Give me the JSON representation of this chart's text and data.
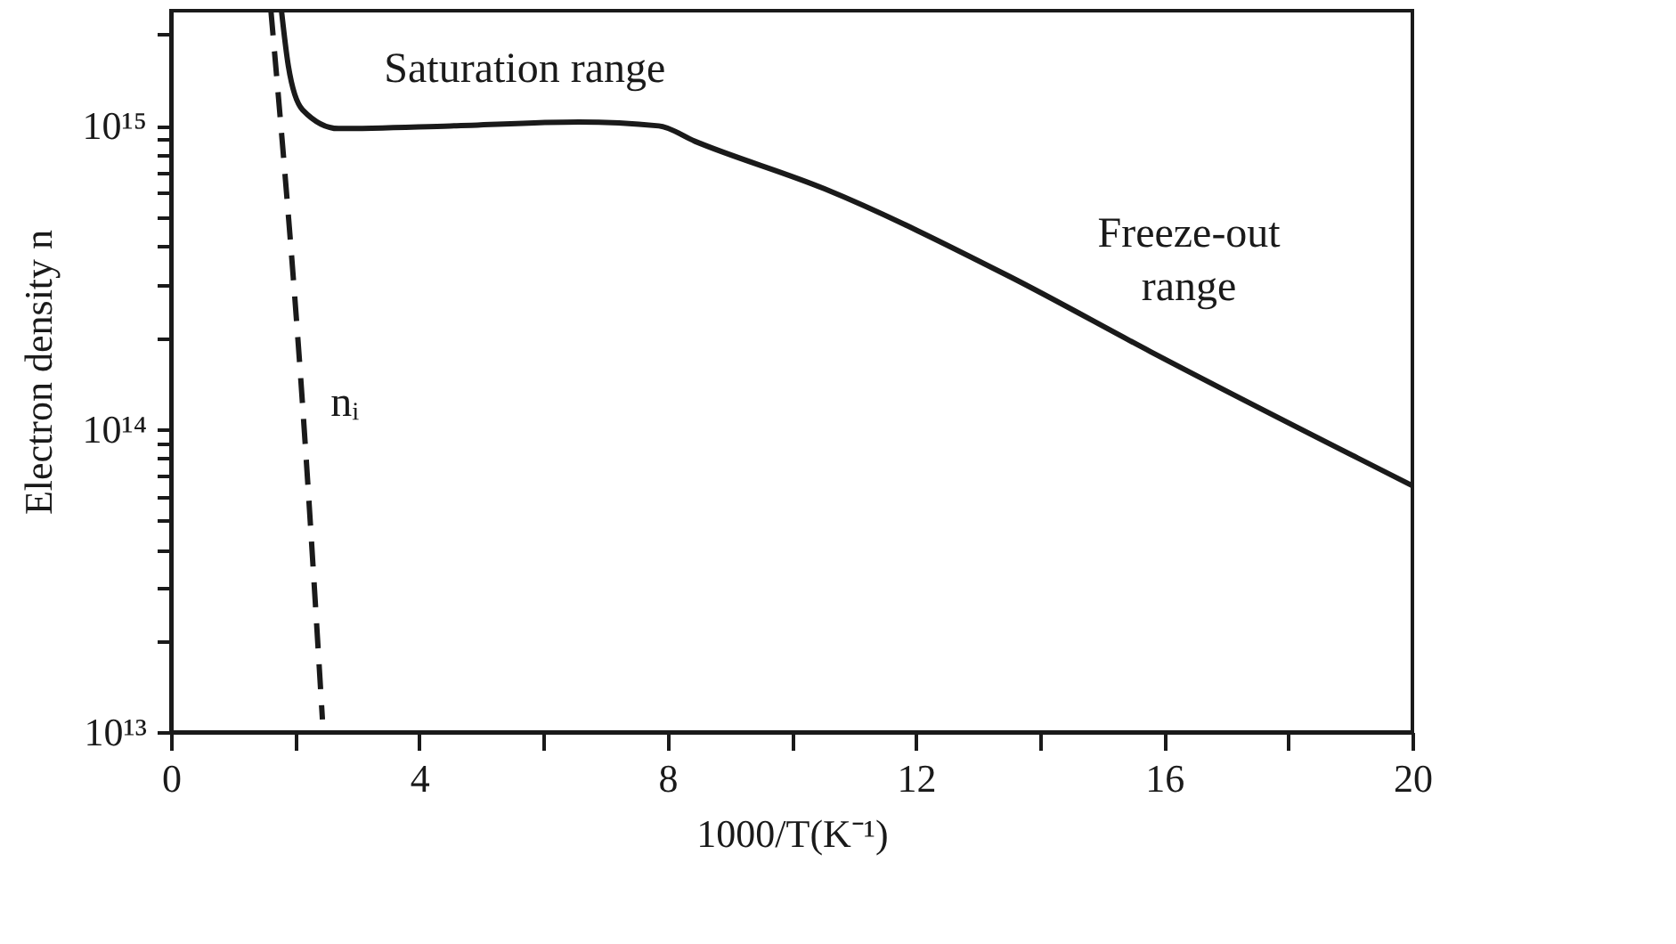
{
  "chart_data": {
    "type": "line",
    "xlabel": "1000/T(K⁻¹)",
    "ylabel": "Electron density n",
    "xlim": [
      0,
      20
    ],
    "xticks": [
      0,
      {
        "value": 2,
        "label": null
      },
      4,
      {
        "value": 6,
        "label": null
      },
      8,
      {
        "value": 10,
        "label": null
      },
      12,
      {
        "value": 14,
        "label": null
      },
      16,
      {
        "value": 18,
        "label": null
      },
      20
    ],
    "ylim": [
      10000000000000.0,
      2400000000000000.0
    ],
    "log": "y",
    "yticks": [
      {
        "value": 10000000000000.0,
        "label": "10¹³"
      },
      {
        "value": 20000000000000.0,
        "label": null
      },
      {
        "value": 30000000000000.0,
        "label": null
      },
      {
        "value": 40000000000000.0,
        "label": null
      },
      {
        "value": 50000000000000.0,
        "label": null
      },
      {
        "value": 60000000000000.0,
        "label": null
      },
      {
        "value": 70000000000000.0,
        "label": null
      },
      {
        "value": 80000000000000.0,
        "label": null
      },
      {
        "value": 90000000000000.0,
        "label": null
      },
      {
        "value": 100000000000000.0,
        "label": "10¹⁴"
      },
      {
        "value": 200000000000000.0,
        "label": null
      },
      {
        "value": 300000000000000.0,
        "label": null
      },
      {
        "value": 400000000000000.0,
        "label": null
      },
      {
        "value": 500000000000000.0,
        "label": null
      },
      {
        "value": 600000000000000.0,
        "label": null
      },
      {
        "value": 700000000000000.0,
        "label": null
      },
      {
        "value": 800000000000000.0,
        "label": null
      },
      {
        "value": 900000000000000.0,
        "label": null
      },
      {
        "value": 1000000000000000.0,
        "label": "10¹⁵"
      },
      {
        "value": 2000000000000000.0,
        "label": null
      }
    ],
    "grid": false,
    "series": [
      {
        "color": "#1a1a1a",
        "line_style": "solid",
        "x": [
          1.78,
          1.89,
          2.12,
          2.7,
          4.5,
          6.57,
          7.86,
          8.44,
          10.53,
          13.49,
          15.78,
          20
        ],
        "values": [
          2400000000000000.0,
          1580000000000000.0,
          1130000000000000.0,
          980000000000000.0,
          1000000000000000.0,
          1030000000000000.0,
          1000000000000000.0,
          890000000000000.0,
          620000000000000.0,
          320000000000000.0,
          180000000000000.0,
          65000000000000.0
        ]
      },
      {
        "color": "#1a1a1a",
        "line_style": "dashed",
        "x": [
          1.61,
          2.12,
          2.44
        ],
        "values": [
          2400000000000000.0,
          120000000000000.0,
          11000000000000.0
        ]
      }
    ],
    "annotations": [
      "Saturation range",
      "nᵢ",
      "Freeze-out\nrange"
    ]
  }
}
